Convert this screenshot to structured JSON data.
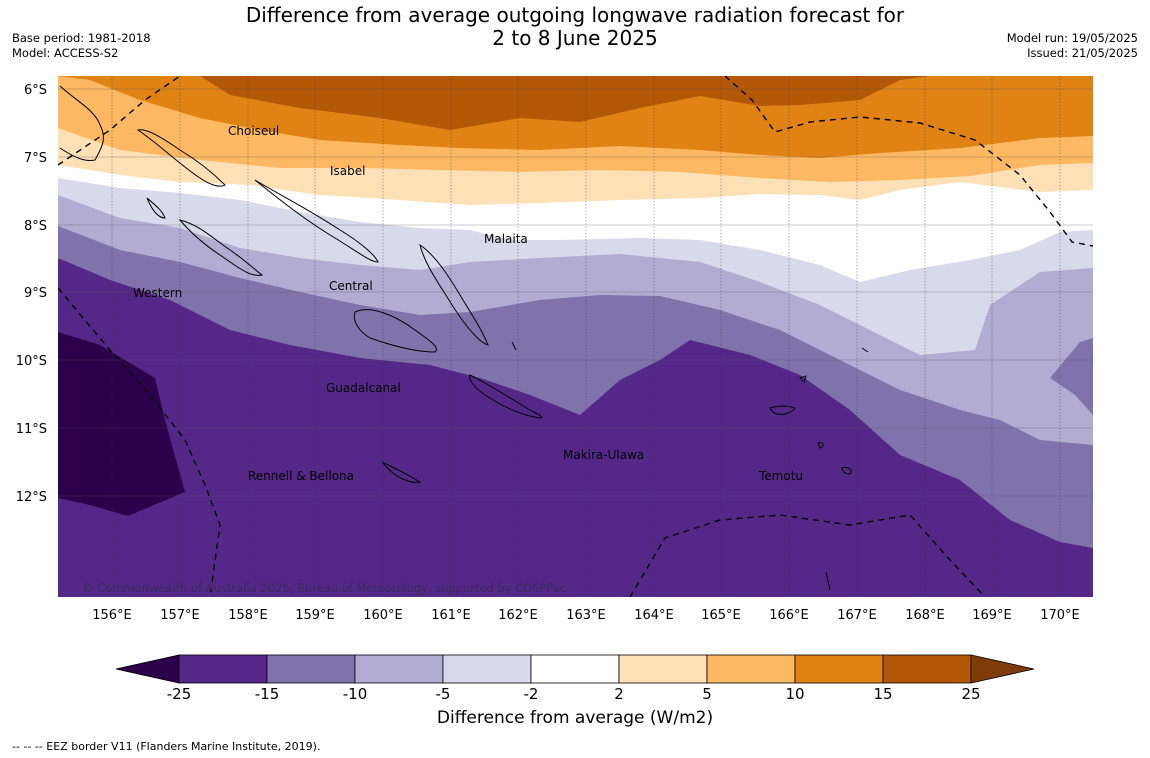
{
  "title": {
    "line1": "Difference from average outgoing longwave radiation forecast for",
    "line2": "2 to 8 June 2025"
  },
  "meta": {
    "base_period": "Base period: 1981-2018",
    "model": "Model: ACCESS-S2",
    "model_run": "Model run: 19/05/2025",
    "issued": "Issued: 21/05/2025"
  },
  "map": {
    "latitude_labels": [
      "6°S",
      "7°S",
      "8°S",
      "9°S",
      "10°S",
      "11°S",
      "12°S"
    ],
    "longitude_labels": [
      "156°E",
      "157°E",
      "158°E",
      "159°E",
      "160°E",
      "161°E",
      "162°E",
      "163°E",
      "164°E",
      "165°E",
      "166°E",
      "167°E",
      "168°E",
      "169°E",
      "170°E"
    ],
    "regions": [
      "Choiseul",
      "Isabel",
      "Malaita",
      "Central",
      "Western",
      "Guadalcanal",
      "Makira-Ulawa",
      "Rennell & Bellona",
      "Temotu"
    ],
    "copyright": "© Commonwealth of Australia 2025, Bureau of Meteorology, supported by COSPPac"
  },
  "colorbar": {
    "tick_labels": [
      "-25",
      "-15",
      "-10",
      "-5",
      "-2",
      "2",
      "5",
      "10",
      "15",
      "25"
    ],
    "label": "Difference from average (W/m2)",
    "colors": [
      "#2d004b",
      "#542788",
      "#8073ac",
      "#b2abd2",
      "#d8daeb",
      "#ffffff",
      "#fee0b6",
      "#fdb863",
      "#e08214",
      "#b35806",
      "#7f3b08"
    ]
  },
  "footnote": "--  --  -- EEZ border V11 (Flanders Marine Institute, 2019)."
}
